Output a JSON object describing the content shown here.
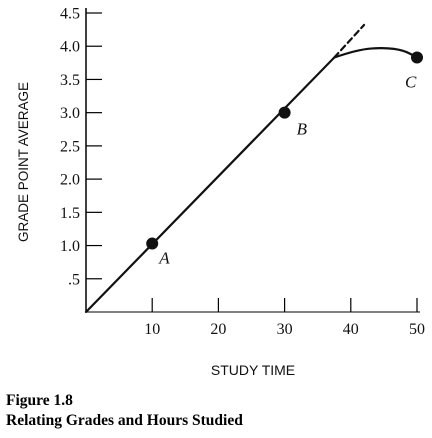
{
  "chart_data": {
    "type": "line",
    "title": "",
    "xlabel": "STUDY TIME",
    "ylabel": "GRADE POINT AVERAGE",
    "xlim": [
      0,
      50
    ],
    "ylim": [
      0,
      4.5
    ],
    "x_ticks": [
      10,
      20,
      30,
      40,
      50
    ],
    "x_tick_labels": [
      "10",
      "20",
      "30",
      "40",
      "50"
    ],
    "y_ticks": [
      0.5,
      1.0,
      1.5,
      2.0,
      2.5,
      3.0,
      3.5,
      4.0,
      4.5
    ],
    "y_tick_labels": [
      ".5",
      "1.0",
      "1.5",
      "2.0",
      "2.5",
      "3.0",
      "3.5",
      "4.0",
      "4.5"
    ],
    "grid": false,
    "series": [
      {
        "values": [
          {
            "x": 0,
            "y": 0
          },
          {
            "x": 37.5,
            "y": 3.83
          },
          {
            "x": 41,
            "y": 3.95
          },
          {
            "x": 45,
            "y": 3.98
          },
          {
            "x": 48,
            "y": 3.94
          },
          {
            "x": 50,
            "y": 3.83
          }
        ],
        "style": "solid"
      },
      {
        "values": [
          {
            "x": 37.5,
            "y": 3.83
          },
          {
            "x": 42,
            "y": 4.32
          }
        ],
        "style": "dashed"
      }
    ],
    "points": [
      {
        "label": "A",
        "x": 10,
        "y": 1.03
      },
      {
        "label": "B",
        "x": 30,
        "y": 3.0
      },
      {
        "label": "C",
        "x": 50,
        "y": 3.83
      }
    ]
  },
  "caption": {
    "figure": "Figure 1.8",
    "title": "Relating Grades and Hours Studied"
  }
}
